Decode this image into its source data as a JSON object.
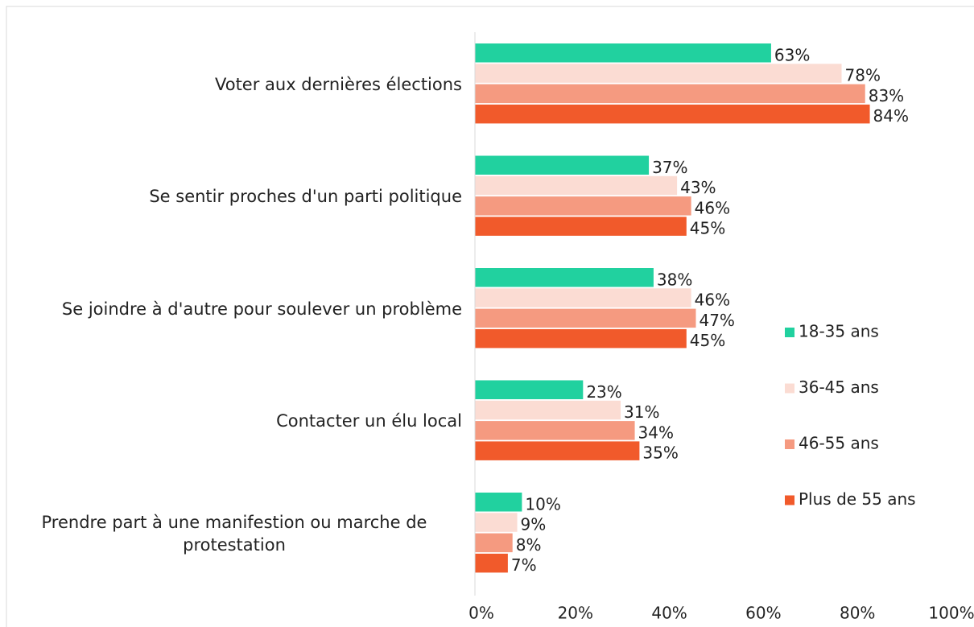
{
  "chart_data": {
    "type": "bar",
    "orientation": "horizontal",
    "categories": [
      "Voter aux dernières élections",
      "Se sentir proches d'un parti politique",
      "Se joindre à d'autre pour soulever un problème",
      "Contacter un élu local",
      "Prendre part à une manifestion ou marche de protestation"
    ],
    "series": [
      {
        "name": "18-35 ans",
        "color": "#21d19f",
        "values": [
          63,
          37,
          38,
          23,
          10
        ],
        "value_labels": [
          "63%",
          "37%",
          "38%",
          "23%",
          "10%"
        ]
      },
      {
        "name": "36-45 ans",
        "color": "#fbdcd3",
        "values": [
          78,
          43,
          46,
          31,
          9
        ],
        "value_labels": [
          "78%",
          "43%",
          "46%",
          "31%",
          "9%"
        ]
      },
      {
        "name": "46-55 ans",
        "color": "#f59a80",
        "values": [
          83,
          46,
          47,
          34,
          8
        ],
        "value_labels": [
          "83%",
          "46%",
          "47%",
          "34%",
          "8%"
        ]
      },
      {
        "name": "Plus de 55 ans",
        "color": "#f15a2b",
        "values": [
          84,
          45,
          45,
          35,
          7
        ],
        "value_labels": [
          "84%",
          "45%",
          "45%",
          "35%",
          "7%"
        ]
      }
    ],
    "xlim": [
      0,
      100
    ],
    "xticks": [
      {
        "value": 0,
        "label": "0%"
      },
      {
        "value": 20,
        "label": "20%"
      },
      {
        "value": 40,
        "label": "40%"
      },
      {
        "value": 60,
        "label": "60%"
      },
      {
        "value": 80,
        "label": "80%"
      },
      {
        "value": 100,
        "label": "100%"
      }
    ],
    "legend": "right"
  }
}
